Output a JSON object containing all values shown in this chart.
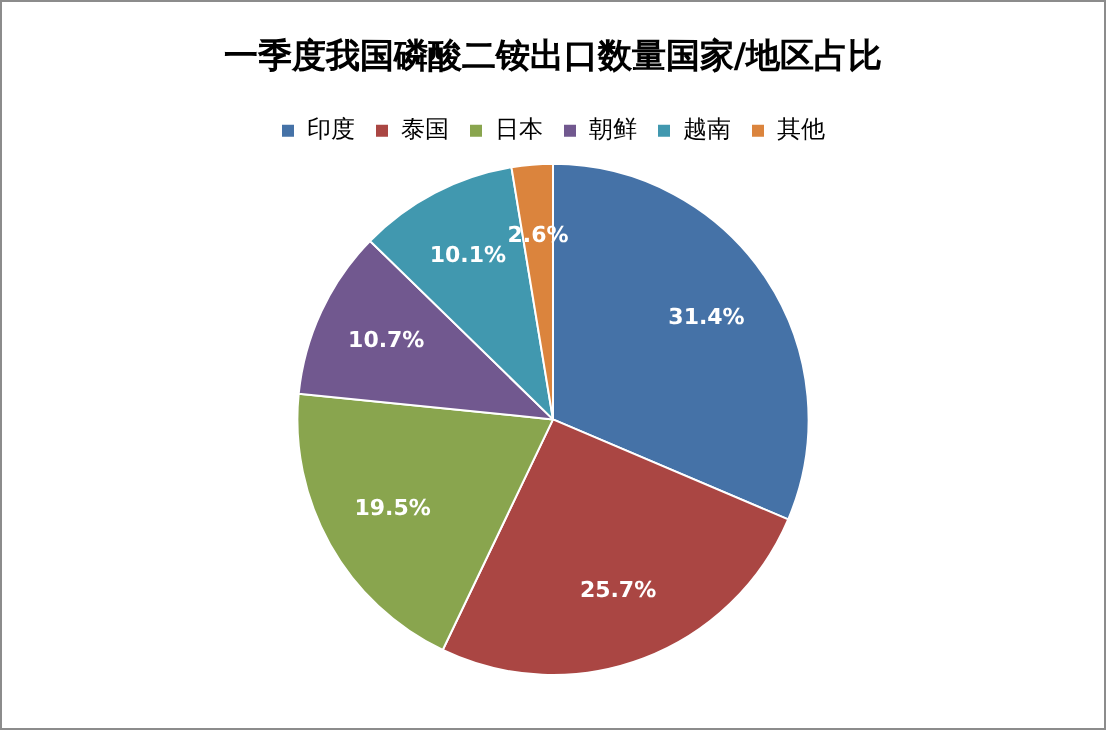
{
  "chart_data": {
    "type": "pie",
    "title": "一季度我国磷酸二铵出口数量国家/地区占比",
    "categories": [
      "印度",
      "泰国",
      "日本",
      "朝鲜",
      "越南",
      "其他"
    ],
    "values": [
      31.4,
      25.7,
      19.5,
      10.7,
      10.1,
      2.6
    ],
    "colors": [
      "#4572a7",
      "#aa4643",
      "#89a54e",
      "#71588f",
      "#4198af",
      "#db843d"
    ],
    "value_labels": [
      "31.4%",
      "25.7%",
      "19.5%",
      "10.7%",
      "10.1%",
      "2.6%"
    ],
    "legend": "top"
  }
}
